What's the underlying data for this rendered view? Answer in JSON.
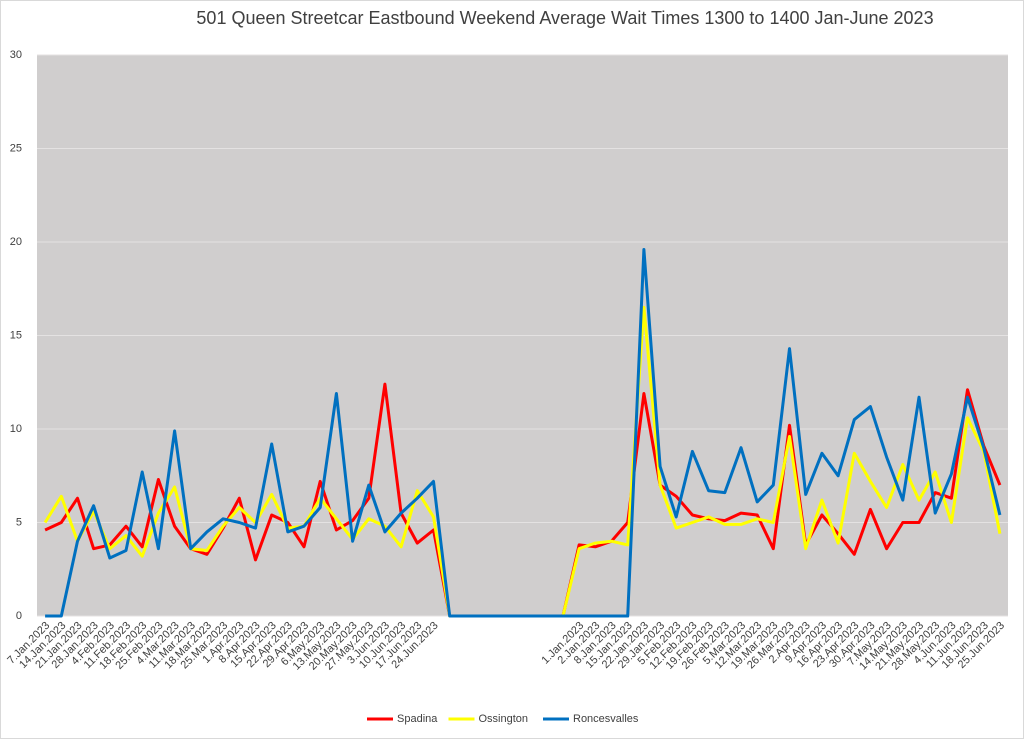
{
  "chart_data": {
    "type": "line",
    "title": "501 Queen Streetcar Eastbound Weekend Average Wait Times 1300 to 1400 Jan-June 2023",
    "categories": [
      "7.Jan.2023",
      "14.Jan.2023",
      "21.Jan.2023",
      "28.Jan.2023",
      "4.Feb.2023",
      "11.Feb.2023",
      "18.Feb.2023",
      "25.Feb.2023",
      "4.Mar.2023",
      "11.Mar.2023",
      "18.Mar.2023",
      "25.Mar.2023",
      "1.Apr.2023",
      "8.Apr.2023",
      "15.Apr.2023",
      "22.Apr.2023",
      "29.Apr.2023",
      "6.May.2023",
      "13.May.2023",
      "20.May.2023",
      "27.May.2023",
      "3.Jun.2023",
      "10.Jun.2023",
      "17.Jun.2023",
      "24.Jun.2023",
      null,
      null,
      null,
      null,
      null,
      null,
      null,
      null,
      "1.Jan.2023",
      "2.Jan.2023",
      "8.Jan.2023",
      "15.Jan.2023",
      "22.Jan.2023",
      "29.Jan.2023",
      "5.Feb.2023",
      "12.Feb.2023",
      "19.Feb.2023",
      "26.Feb.2023",
      "5.Mar.2023",
      "12.Mar.2023",
      "19.Mar.2023",
      "26.Mar.2023",
      "2.Apr.2023",
      "9.Apr.2023",
      "16.Apr.2023",
      "23.Apr.2023",
      "30.Apr.2023",
      "7.May.2023",
      "14.May.2023",
      "21.May.2023",
      "28.May.2023",
      "4.Jun.2023",
      "11.Jun.2023",
      "18.Jun.2023",
      "25.Jun.2023"
    ],
    "series": [
      {
        "name": "Spadina",
        "color": "#ff0000",
        "values": [
          4.6,
          5.0,
          6.3,
          3.6,
          3.8,
          4.8,
          3.7,
          7.3,
          4.8,
          3.6,
          3.3,
          4.7,
          6.3,
          3.0,
          5.4,
          5.0,
          3.7,
          7.2,
          4.6,
          5.1,
          6.3,
          12.4,
          5.5,
          3.9,
          4.6,
          0,
          0,
          0,
          0,
          0,
          0,
          0,
          0,
          3.8,
          3.7,
          4.0,
          5.0,
          11.9,
          7.0,
          6.4,
          5.4,
          5.2,
          5.1,
          5.5,
          5.4,
          3.6,
          10.2,
          3.8,
          5.4,
          4.4,
          3.3,
          5.7,
          3.6,
          5.0,
          5.0,
          6.6,
          6.3,
          12.1,
          9.1,
          7.0
        ]
      },
      {
        "name": "Ossington",
        "color": "#ffff00",
        "values": [
          5.0,
          6.4,
          4.0,
          5.6,
          3.6,
          4.3,
          3.2,
          5.5,
          6.9,
          3.6,
          3.5,
          4.8,
          5.8,
          5.0,
          6.5,
          4.7,
          4.8,
          6.3,
          5.2,
          4.1,
          5.2,
          4.8,
          3.7,
          6.7,
          5.3,
          0,
          0,
          0,
          0,
          0,
          0,
          0,
          0,
          3.6,
          3.9,
          4.0,
          3.8,
          16.5,
          7.0,
          4.7,
          5.0,
          5.3,
          4.9,
          4.9,
          5.2,
          5.0,
          9.6,
          3.6,
          6.2,
          3.9,
          8.7,
          7.2,
          5.8,
          8.1,
          6.2,
          7.7,
          5.0,
          10.6,
          8.8,
          4.4
        ]
      },
      {
        "name": "Roncesvalles",
        "color": "#0070c0",
        "values": [
          0,
          0,
          4.0,
          5.9,
          3.1,
          3.5,
          7.7,
          3.6,
          9.9,
          3.6,
          4.5,
          5.2,
          5.0,
          4.7,
          9.2,
          4.5,
          4.8,
          5.8,
          11.9,
          4.0,
          7.0,
          4.5,
          5.5,
          6.3,
          7.2,
          0,
          0,
          0,
          0,
          0,
          0,
          0,
          0,
          0,
          0,
          0,
          0,
          19.6,
          8.0,
          5.3,
          8.8,
          6.7,
          6.6,
          9.0,
          6.1,
          7.0,
          14.3,
          6.5,
          8.7,
          7.5,
          10.5,
          11.2,
          8.5,
          6.2,
          11.7,
          5.5,
          7.6,
          11.7,
          9.0,
          5.4
        ]
      }
    ],
    "ylim": [
      0,
      30
    ],
    "yticks": [
      0,
      5,
      10,
      15,
      20,
      25,
      30
    ],
    "grid": true,
    "legend": "bottom"
  }
}
